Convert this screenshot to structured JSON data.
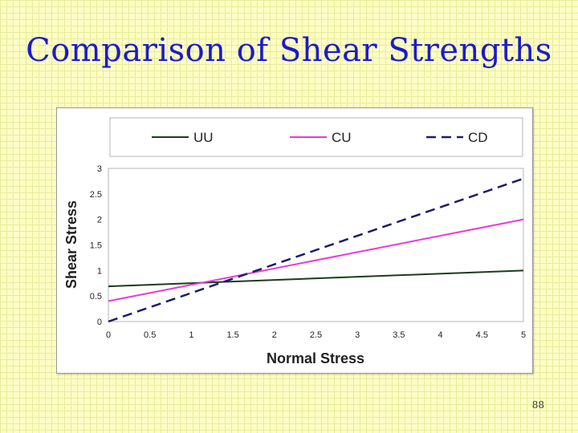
{
  "slide": {
    "title": "Comparison of Shear Strengths",
    "page_number": "88"
  },
  "chart_data": {
    "type": "line",
    "xlabel": "Normal Stress",
    "ylabel": "Shear Stress",
    "xlim": [
      0,
      5
    ],
    "ylim": [
      0,
      3
    ],
    "xticks": [
      "0",
      "0.5",
      "1",
      "1.5",
      "2",
      "2.5",
      "3",
      "3.5",
      "4",
      "4.5",
      "5"
    ],
    "yticks": [
      "0",
      "0.5",
      "1",
      "1.5",
      "2",
      "2.5",
      "3"
    ],
    "legend_position": "top",
    "grid": false,
    "series": [
      {
        "name": "UU",
        "color": "#1a3d1a",
        "dash": "solid",
        "x": [
          0,
          5
        ],
        "y": [
          0.69,
          1.0
        ]
      },
      {
        "name": "CU",
        "color": "#e83ad8",
        "dash": "solid",
        "x": [
          0,
          5
        ],
        "y": [
          0.4,
          2.0
        ]
      },
      {
        "name": "CD",
        "color": "#1c1c6a",
        "dash": "dashed",
        "x": [
          0,
          5
        ],
        "y": [
          0.0,
          2.8
        ]
      }
    ]
  }
}
